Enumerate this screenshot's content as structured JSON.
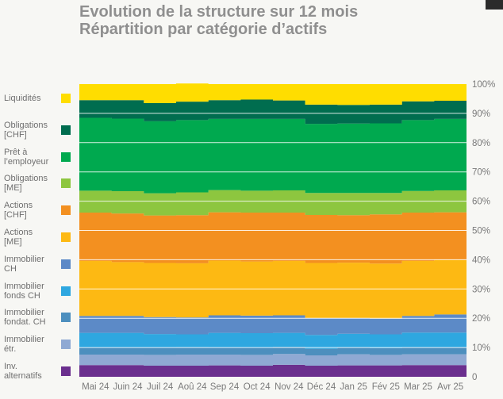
{
  "header": {
    "line1": "Evolution de la structure sur 12 mois",
    "line2": "Répartition par catégorie d’actifs"
  },
  "chart_data": {
    "type": "area",
    "stacked": true,
    "normalized": true,
    "categories": [
      "Mai 24",
      "Juin 24",
      "Juil 24",
      "Aoû 24",
      "Sep 24",
      "Oct 24",
      "Nov 24",
      "Déc 24",
      "Jan 25",
      "Fév 25",
      "Mar 25",
      "Avr 25"
    ],
    "y_ticks": [
      "0",
      "10%",
      "20%",
      "30%",
      "40%",
      "50%",
      "60%",
      "70%",
      "80%",
      "90%",
      "100%"
    ],
    "ylim": [
      0,
      100
    ],
    "grid": true,
    "legend_position": "left",
    "series": [
      {
        "name": "Inv. alternatifs",
        "color": "#6b2f8e",
        "values": [
          4.0,
          4.0,
          3.8,
          3.8,
          3.9,
          3.8,
          4.1,
          3.8,
          3.9,
          3.9,
          4.0,
          4.0
        ]
      },
      {
        "name": "Immobilier étr.",
        "color": "#8fa9d3",
        "values": [
          3.6,
          3.6,
          3.7,
          3.8,
          3.7,
          3.7,
          3.7,
          3.5,
          3.8,
          3.6,
          3.7,
          3.7
        ]
      },
      {
        "name": "Immobilier fondat. CH",
        "color": "#4d8fbe",
        "values": [
          2.4,
          2.4,
          2.5,
          2.5,
          2.4,
          2.4,
          2.4,
          2.3,
          2.4,
          2.3,
          2.4,
          2.4
        ]
      },
      {
        "name": "Immobilier fonds CH",
        "color": "#2ea7e0",
        "values": [
          5.0,
          5.0,
          4.6,
          4.4,
          5.0,
          5.0,
          4.8,
          4.7,
          4.6,
          4.7,
          5.0,
          5.0
        ]
      },
      {
        "name": "Immobilier CH",
        "color": "#5c8ac7",
        "values": [
          5.8,
          5.8,
          5.8,
          5.8,
          6.0,
          6.0,
          6.0,
          5.8,
          5.4,
          5.4,
          5.7,
          6.2
        ]
      },
      {
        "name": "Actions [ME]",
        "color": "#fdb913",
        "values": [
          18.8,
          18.4,
          18.5,
          18.5,
          18.7,
          18.5,
          18.6,
          18.8,
          18.9,
          18.8,
          18.8,
          18.7
        ]
      },
      {
        "name": "Actions [CHF]",
        "color": "#f39020",
        "values": [
          16.5,
          16.6,
          16.2,
          16.4,
          16.5,
          16.7,
          16.5,
          16.4,
          16.2,
          16.8,
          16.5,
          16.2
        ]
      },
      {
        "name": "Obligations [ME]",
        "color": "#8dc63f",
        "values": [
          7.5,
          7.6,
          7.6,
          7.8,
          7.6,
          7.5,
          7.6,
          7.5,
          7.6,
          7.3,
          7.4,
          7.5
        ]
      },
      {
        "name": "Prêt à l’employeur",
        "color": "#00a94f",
        "values": [
          24.9,
          24.8,
          24.6,
          24.7,
          24.3,
          24.5,
          24.4,
          23.6,
          23.7,
          23.8,
          24.2,
          24.4
        ]
      },
      {
        "name": "Obligations [CHF]",
        "color": "#006d4f",
        "values": [
          6.0,
          6.3,
          6.2,
          6.3,
          6.4,
          6.6,
          6.3,
          6.6,
          6.4,
          6.4,
          6.4,
          6.2
        ]
      },
      {
        "name": "Liquidités",
        "color": "#ffdd00",
        "values": [
          5.5,
          5.5,
          6.5,
          6.2,
          5.5,
          5.3,
          5.6,
          7.0,
          7.1,
          7.0,
          5.9,
          5.7
        ]
      }
    ]
  }
}
